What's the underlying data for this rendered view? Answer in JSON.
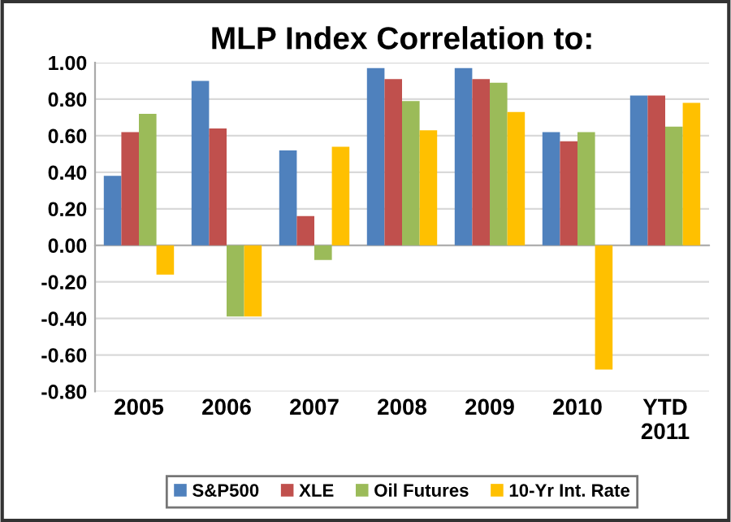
{
  "chart_data": {
    "type": "bar",
    "title": "MLP Index Correlation to:",
    "categories": [
      "2005",
      "2006",
      "2007",
      "2008",
      "2009",
      "2010",
      "YTD\n2011"
    ],
    "series": [
      {
        "name": "S&P500",
        "color": "#4f81bd",
        "values": [
          0.38,
          0.9,
          0.52,
          0.97,
          0.97,
          0.62,
          0.82
        ]
      },
      {
        "name": "XLE",
        "color": "#c0504d",
        "values": [
          0.62,
          0.64,
          0.16,
          0.91,
          0.91,
          0.57,
          0.82
        ]
      },
      {
        "name": "Oil Futures",
        "color": "#9bbb59",
        "values": [
          0.72,
          -0.39,
          -0.08,
          0.79,
          0.89,
          0.62,
          0.65
        ]
      },
      {
        "name": "10-Yr Int. Rate",
        "color": "#ffc000",
        "values": [
          -0.16,
          -0.39,
          0.54,
          0.63,
          0.73,
          -0.68,
          0.78
        ]
      }
    ],
    "ylim": [
      -0.8,
      1.0
    ],
    "yticks": [
      {
        "value": -0.8,
        "label": "-0.80"
      },
      {
        "value": -0.6,
        "label": "-0.60"
      },
      {
        "value": -0.4,
        "label": "-0.40"
      },
      {
        "value": -0.2,
        "label": "-0.20"
      },
      {
        "value": 0,
        "label": "0.00"
      },
      {
        "value": 0.2,
        "label": "0.20"
      },
      {
        "value": 0.4,
        "label": "0.40"
      },
      {
        "value": 0.6,
        "label": "0.60"
      },
      {
        "value": 0.8,
        "label": "0.80"
      },
      {
        "value": 1.0,
        "label": "1.00"
      }
    ],
    "grid": "y",
    "legend": "bottom"
  }
}
